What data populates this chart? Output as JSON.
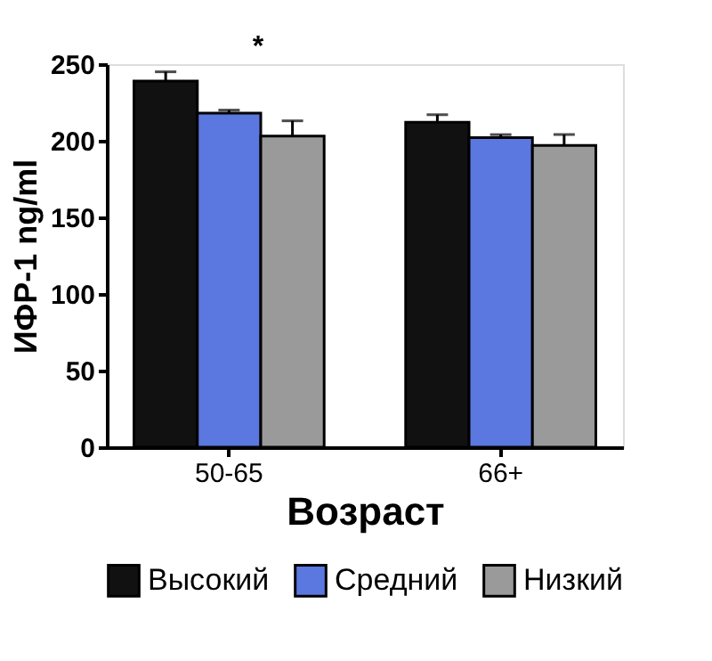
{
  "chart_data": {
    "type": "bar",
    "xlabel": "Возраст",
    "ylabel": "ИФР-1   ng/ml",
    "categories": [
      "50-65",
      "66+"
    ],
    "series": [
      {
        "name": "Высокий",
        "color": "#111111",
        "values": [
          239,
          212
        ],
        "errors": [
          [
            239,
            245
          ],
          [
            212,
            217
          ]
        ]
      },
      {
        "name": "Средний",
        "color": "#5b78e0",
        "values": [
          218,
          202
        ],
        "errors": [
          [
            218,
            220
          ],
          [
            202,
            204
          ]
        ]
      },
      {
        "name": "Низкий",
        "color": "#9a9a9a",
        "values": [
          203,
          197
        ],
        "errors": [
          [
            203,
            213
          ],
          [
            197,
            204
          ]
        ]
      }
    ],
    "ylim": [
      0,
      250
    ],
    "yticks": [
      0,
      50,
      100,
      150,
      200,
      250
    ],
    "grid": false,
    "legend": "bottom",
    "annotations": [
      "*"
    ]
  }
}
